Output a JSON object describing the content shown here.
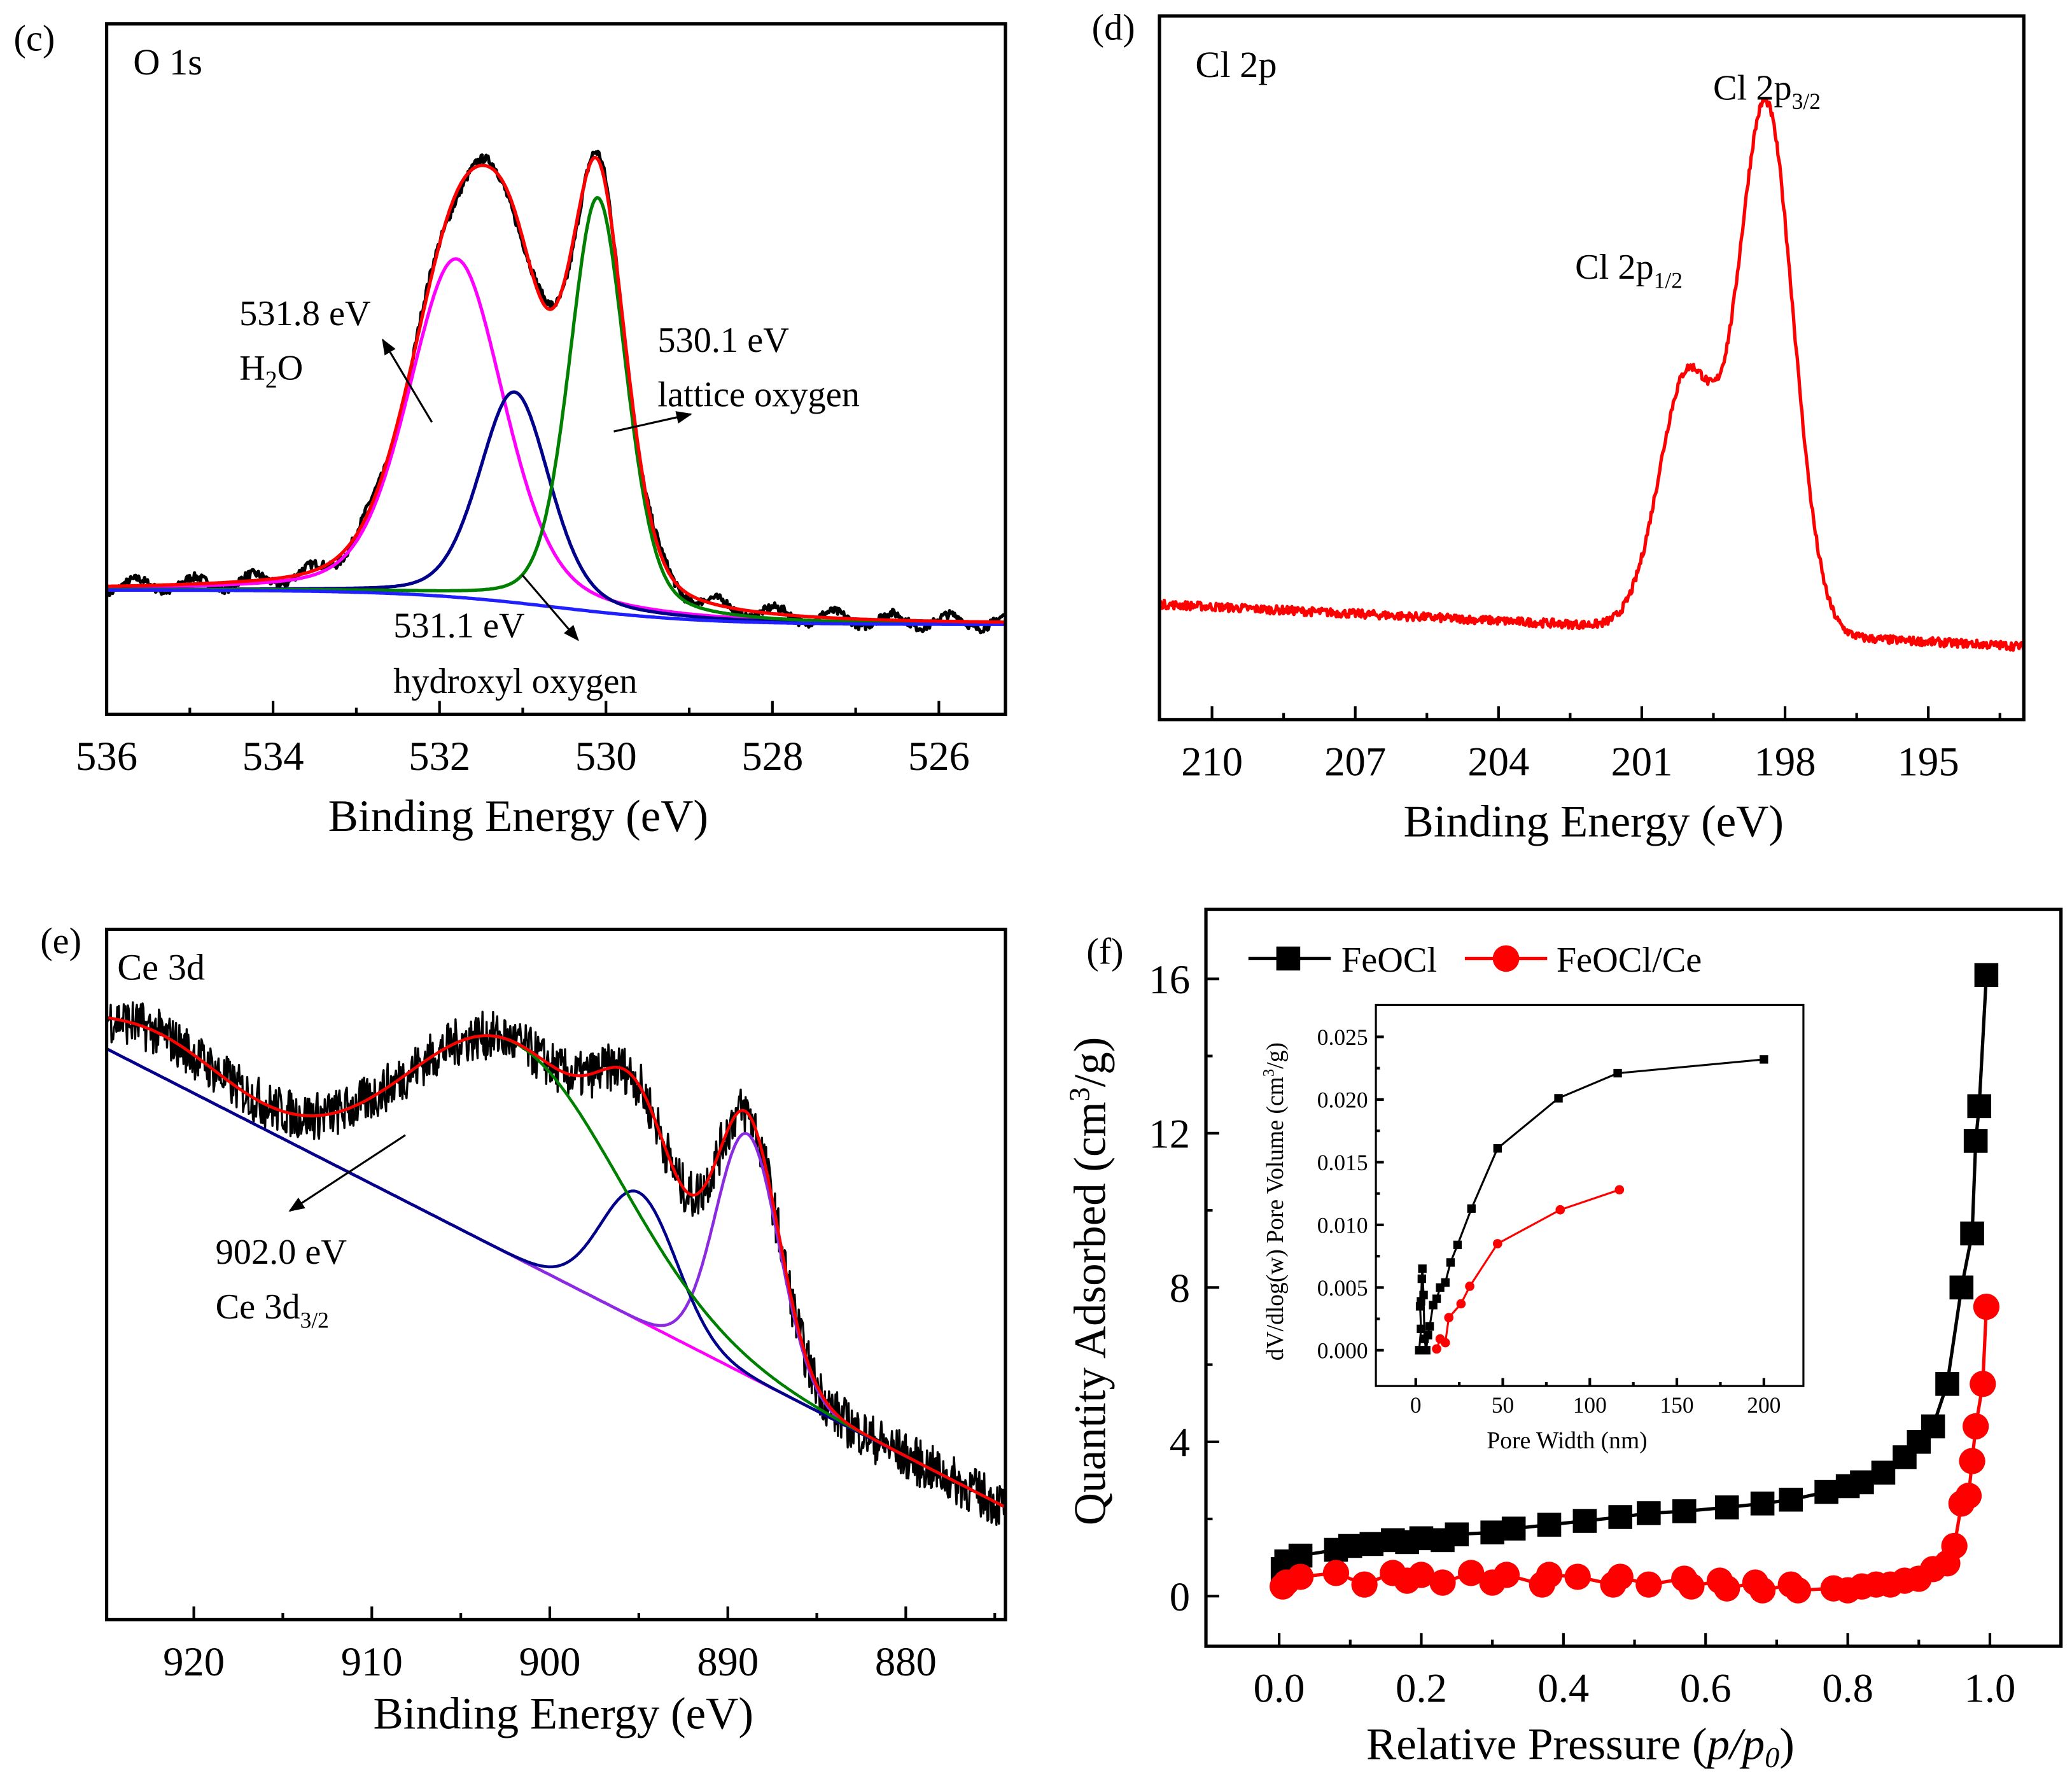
{
  "chart_data": [
    {
      "panel": "(c)",
      "type": "line",
      "title": "O 1s",
      "xlabel": "Binding Energy (eV)",
      "xlim": [
        536,
        525.2
      ],
      "xticks": [
        536,
        534,
        532,
        530,
        528,
        526
      ],
      "ylim": [
        0,
        1
      ],
      "y_units": "a.u. (no y-axis shown)",
      "baseline": {
        "left": 0.18,
        "right": 0.13,
        "color": "#1f1fff"
      },
      "peaks": [
        {
          "center": 531.8,
          "amplitude": 0.49,
          "fwhm": 1.35,
          "color": "#ff00ff"
        },
        {
          "center": 531.1,
          "amplitude": 0.305,
          "fwhm": 1.0,
          "color": "#00008b"
        },
        {
          "center": 530.1,
          "amplitude": 0.6,
          "fwhm": 0.8,
          "color": "#008000"
        }
      ],
      "envelope_color": "#ff0000",
      "raw_color": "#000000",
      "annotations": {
        "a1_line1": "531.8 eV",
        "a1_h": "H",
        "a1_sub": "2",
        "a1_o": "O",
        "a2_line1": "530.1 eV",
        "a2_line2": "lattice oxygen",
        "a3_line1": "531.1 eV",
        "a3_line2": "hydroxyl oxygen"
      }
    },
    {
      "panel": "(d)",
      "type": "line",
      "title": "Cl 2p",
      "xlabel": "Binding Energy (eV)",
      "xlim": [
        211.1,
        193.0
      ],
      "xticks": [
        210,
        207,
        204,
        201,
        198,
        195
      ],
      "ylim": [
        0,
        1
      ],
      "baseline": {
        "left": 0.164,
        "right": 0.104
      },
      "peaks": [
        {
          "center": 198.4,
          "amplitude": 0.75,
          "fwhm": 1.35
        },
        {
          "center": 200.05,
          "amplitude": 0.36,
          "fwhm": 1.4
        }
      ],
      "color": "#ff0000",
      "annotations": {
        "p32": "Cl 2p",
        "p32_sub": "3/2",
        "p12": "Cl 2p",
        "p12_sub": "1/2"
      }
    },
    {
      "panel": "(e)",
      "type": "line",
      "title": "Ce 3d",
      "xlabel": "Binding Energy (eV)",
      "xlim": [
        924.9,
        874.4
      ],
      "xticks": [
        920,
        910,
        900,
        890,
        880
      ],
      "ylim": [
        0,
        1
      ],
      "baseline": {
        "left": 0.827,
        "right": 0.163,
        "color": "#ff00ff"
      },
      "peaks": [
        {
          "center": 888.9,
          "amplitude": 0.35,
          "fwhm": 4.2,
          "color": "#8a2be2"
        },
        {
          "center": 895.0,
          "amplitude": 0.185,
          "fwhm": 5.0,
          "color": "#00008b"
        },
        {
          "center": 902.0,
          "amplitude": 0.31,
          "fwhm": 14,
          "color": "#008000"
        },
        {
          "center": 922.0,
          "amplitude": 0.06,
          "fwhm": 9,
          "color": "#008000"
        }
      ],
      "envelope_color": "#ff0000",
      "annotations": {
        "line1": "902.0 eV",
        "line2": "Ce 3d",
        "line2_sub": "3/2"
      }
    },
    {
      "panel": "(f)",
      "type": "line",
      "xlabel": "Relative Pressure",
      "xlabel_var": "p/p",
      "xlabel_sub": "0",
      "ylabel": "Quantity Adsorbed (cm",
      "ylabel_sup": "3",
      "ylabel_end": "/g)",
      "xlim": [
        -0.103,
        1.1
      ],
      "ylim": [
        -1.3,
        17.8
      ],
      "xticks": [
        "0.0",
        "0.2",
        "0.4",
        "0.6",
        "0.8",
        "1.0"
      ],
      "yticks": [
        0,
        4,
        8,
        12,
        16
      ],
      "legend": "top-left",
      "series": [
        {
          "name": "FeOCl",
          "color": "#000000",
          "marker": "square",
          "x": [
            0.005,
            0.01,
            0.03,
            0.08,
            0.1,
            0.13,
            0.16,
            0.18,
            0.2,
            0.23,
            0.25,
            0.3,
            0.33,
            0.38,
            0.43,
            0.48,
            0.52,
            0.57,
            0.63,
            0.68,
            0.72,
            0.77,
            0.8,
            0.82,
            0.85,
            0.88,
            0.9,
            0.92,
            0.94,
            0.96,
            0.975,
            0.98,
            0.985,
            0.995
          ],
          "y": [
            0.7,
            0.9,
            1.05,
            1.2,
            1.3,
            1.35,
            1.45,
            1.4,
            1.5,
            1.45,
            1.6,
            1.65,
            1.75,
            1.85,
            1.95,
            2.05,
            2.15,
            2.2,
            2.3,
            2.4,
            2.5,
            2.7,
            2.85,
            2.95,
            3.2,
            3.6,
            4.0,
            4.4,
            5.5,
            8.0,
            9.4,
            11.8,
            12.7,
            16.1
          ]
        },
        {
          "name": "FeOCl/Ce",
          "color": "#ff0000",
          "marker": "circle",
          "x": [
            0.005,
            0.01,
            0.03,
            0.08,
            0.12,
            0.16,
            0.18,
            0.2,
            0.23,
            0.27,
            0.3,
            0.32,
            0.37,
            0.38,
            0.42,
            0.47,
            0.48,
            0.52,
            0.57,
            0.58,
            0.62,
            0.63,
            0.67,
            0.68,
            0.72,
            0.73,
            0.78,
            0.8,
            0.82,
            0.84,
            0.86,
            0.88,
            0.9,
            0.92,
            0.94,
            0.95,
            0.96,
            0.97,
            0.975,
            0.98,
            0.99,
            0.995
          ],
          "y": [
            0.25,
            0.35,
            0.5,
            0.6,
            0.3,
            0.6,
            0.4,
            0.55,
            0.35,
            0.6,
            0.35,
            0.55,
            0.3,
            0.55,
            0.5,
            0.3,
            0.5,
            0.3,
            0.45,
            0.25,
            0.4,
            0.2,
            0.35,
            0.15,
            0.3,
            0.15,
            0.2,
            0.15,
            0.25,
            0.3,
            0.3,
            0.4,
            0.45,
            0.7,
            0.85,
            1.3,
            2.4,
            2.6,
            3.5,
            4.4,
            5.5,
            7.5
          ]
        }
      ],
      "inset": {
        "xlabel": "Pore Width (nm)",
        "ylabel": "dV/dlog(w) Pore Volume (cm",
        "ylabel_sup": "3",
        "ylabel_end": "/g)",
        "xlim": [
          -22.9,
          222.7
        ],
        "ylim": [
          -0.00286,
          0.02754
        ],
        "xticks": [
          0,
          50,
          100,
          150,
          200
        ],
        "yticks": [
          "0.000",
          "0.005",
          "0.010",
          "0.015",
          "0.020",
          "0.025"
        ],
        "series": [
          {
            "name": "FeOCl",
            "color": "#000000",
            "marker": "square",
            "x": [
              2,
              3,
              2.5,
              3,
              3.5,
              3.8,
              4.5,
              5,
              6,
              7,
              8,
              10,
              12,
              14,
              17,
              20,
              24,
              32,
              47,
              82,
              116,
              200
            ],
            "y": [
              0,
              0.0017,
              0.0035,
              0.0039,
              0.0057,
              0.0065,
              0.0044,
              0.0009,
              0,
              0.0012,
              0.0019,
              0.0036,
              0.0041,
              0.005,
              0.0054,
              0.007,
              0.0084,
              0.0113,
              0.0161,
              0.0201,
              0.0221,
              0.0232
            ]
          },
          {
            "name": "FeOCl/Ce",
            "color": "#ff0000",
            "marker": "circle",
            "x": [
              12,
              14,
              17,
              19,
              26,
              31,
              47,
              83,
              117
            ],
            "y": [
              0.0001,
              0.0009,
              0.0006,
              0.0026,
              0.0037,
              0.0051,
              0.0085,
              0.0112,
              0.0128
            ]
          }
        ]
      }
    }
  ]
}
